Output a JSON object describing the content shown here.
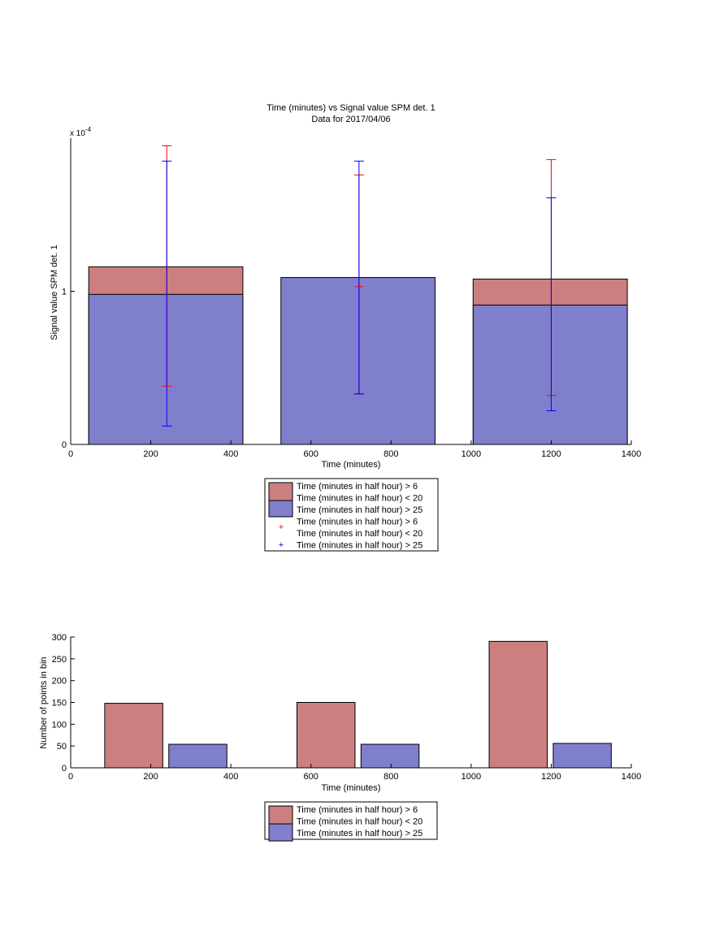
{
  "colors": {
    "red_fill": "#cc7f7f",
    "blue_fill": "#7f7fcc",
    "red_err": "#ff0000",
    "blue_err": "#0000ff"
  },
  "chart_data": [
    {
      "type": "bar",
      "title": "Time (minutes) vs Signal value SPM det. 1",
      "subtitle": "Data for 2017/04/06",
      "xlabel": "Time (minutes)",
      "ylabel": "Signal value SPM det. 1",
      "exponent_label": "x 10",
      "exponent_power": "-4",
      "xlim": [
        0,
        1400
      ],
      "ylim": [
        0,
        2.0
      ],
      "xticks": [
        "0",
        "200",
        "400",
        "600",
        "800",
        "1000",
        "1200",
        "1400"
      ],
      "yticks": [
        "0",
        "1"
      ],
      "grid": false,
      "bars": [
        {
          "x0": 45,
          "x1": 430,
          "red_value": 1.16,
          "blue_value": 0.98
        },
        {
          "x0": 525,
          "x1": 910,
          "red_value": null,
          "blue_value": 1.09
        },
        {
          "x0": 1005,
          "x1": 1390,
          "red_value": 1.08,
          "blue_value": 0.91
        }
      ],
      "error_bars": [
        {
          "x": 240,
          "red": [
            0.38,
            1.95
          ],
          "blue": [
            0.12,
            1.85
          ]
        },
        {
          "x": 720,
          "red": [
            0.33,
            1.76
          ],
          "red_mid": 1.03,
          "blue": [
            0.33,
            1.85
          ]
        },
        {
          "x": 1200,
          "red": [
            0.32,
            1.86
          ],
          "blue": [
            0.22,
            1.61
          ]
        }
      ],
      "legend": {
        "placement": "below",
        "entries": [
          "Time (minutes in half hour) > 6",
          "Time (minutes in half hour) < 20",
          "Time (minutes in half hour) > 25",
          "Time (minutes in half hour) > 6",
          "Time (minutes in half hour) < 20",
          "Time (minutes in half hour) > 25"
        ]
      }
    },
    {
      "type": "bar",
      "xlabel": "Time (minutes)",
      "ylabel": "Number of points in bin",
      "xlim": [
        0,
        1400
      ],
      "ylim": [
        0,
        300
      ],
      "xticks": [
        "0",
        "200",
        "400",
        "600",
        "800",
        "1000",
        "1200",
        "1400"
      ],
      "yticks": [
        "0",
        "50",
        "100",
        "150",
        "200",
        "250",
        "300"
      ],
      "grid": false,
      "bars": [
        {
          "series": "red",
          "x0": 85,
          "x1": 230,
          "value": 148
        },
        {
          "series": "blue",
          "x0": 245,
          "x1": 390,
          "value": 54
        },
        {
          "series": "red",
          "x0": 565,
          "x1": 710,
          "value": 150
        },
        {
          "series": "blue",
          "x0": 725,
          "x1": 870,
          "value": 54
        },
        {
          "series": "red",
          "x0": 1045,
          "x1": 1190,
          "value": 290
        },
        {
          "series": "blue",
          "x0": 1205,
          "x1": 1350,
          "value": 56
        }
      ],
      "legend": {
        "placement": "below",
        "entries": [
          "Time (minutes in half hour) > 6",
          "Time (minutes in half hour) < 20",
          "Time (minutes in half hour) > 25"
        ]
      }
    }
  ]
}
